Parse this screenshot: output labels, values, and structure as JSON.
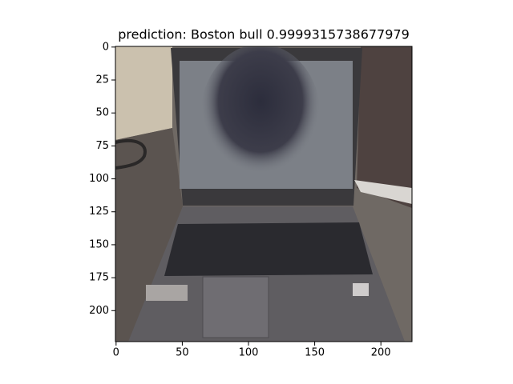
{
  "chart_data": {
    "type": "image",
    "title": "prediction: Boston bull 0.9999315738677979",
    "xlim": [
      -0.5,
      223.5
    ],
    "ylim": [
      223.5,
      -0.5
    ],
    "xticks": [
      0,
      50,
      100,
      150,
      200
    ],
    "yticks": [
      0,
      25,
      50,
      75,
      100,
      125,
      150,
      175,
      200
    ]
  }
}
